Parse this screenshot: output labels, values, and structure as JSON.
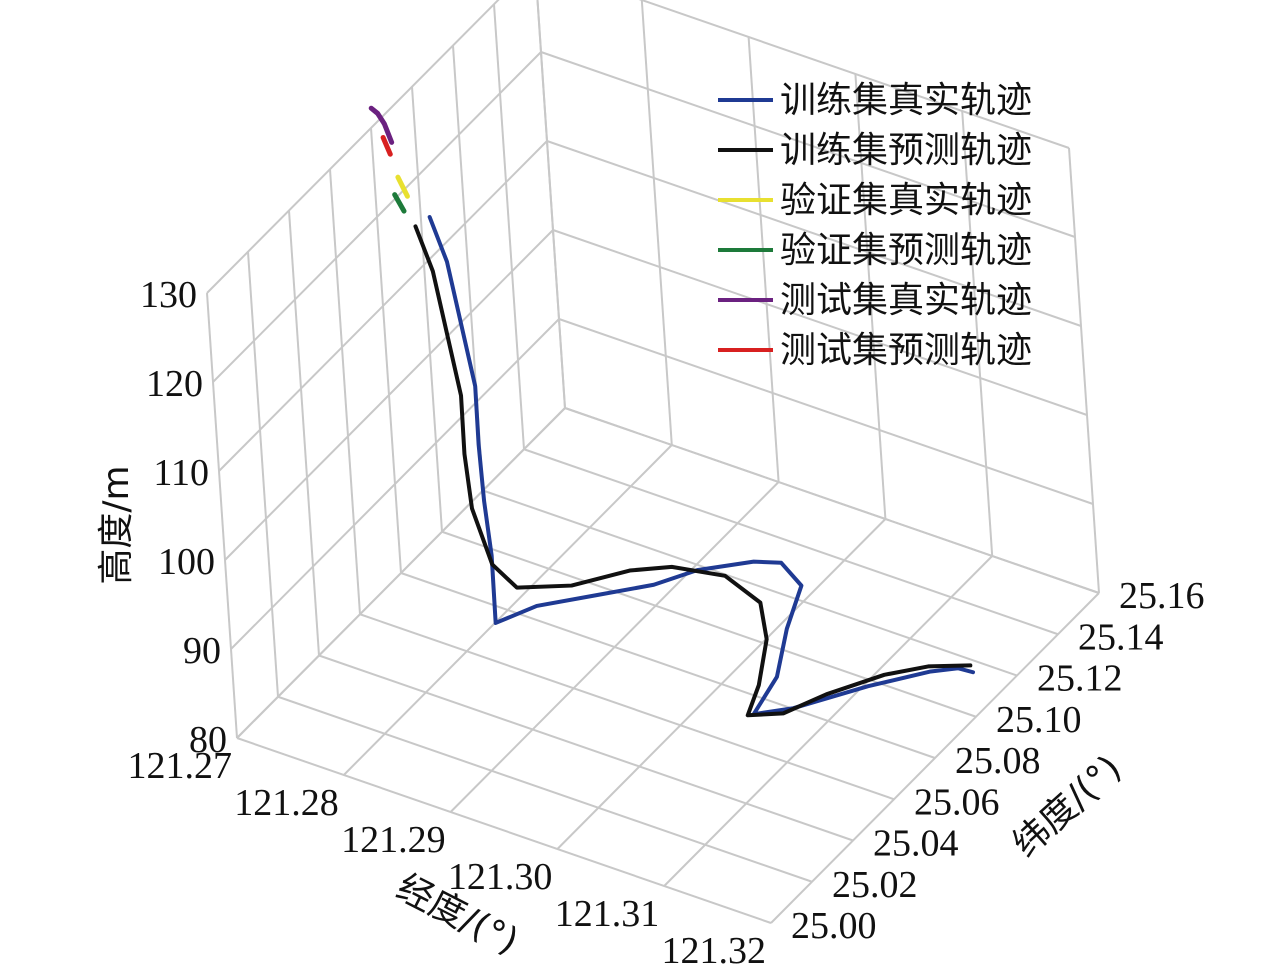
{
  "chart_data": {
    "type": "line",
    "xlabel": "经度/(°)",
    "ylabel": "纬度/(°)",
    "zlabel": "高度/m",
    "x_ticks": [
      "121.27",
      "121.28",
      "121.29",
      "121.30",
      "121.31",
      "121.32"
    ],
    "y_ticks": [
      "25.00",
      "25.02",
      "25.04",
      "25.06",
      "25.08",
      "25.10",
      "25.12",
      "25.14",
      "25.16"
    ],
    "z_ticks": [
      "80",
      "90",
      "100",
      "110",
      "120",
      "130"
    ],
    "grid": true,
    "legend_position": "top-right",
    "series": [
      {
        "name": "训练集真实轨迹",
        "color": "#1f3a93",
        "points": [
          [
            121.274,
            25.085,
            120.5
          ],
          [
            121.276,
            25.082,
            117
          ],
          [
            121.278,
            25.077,
            112
          ],
          [
            121.28,
            25.072,
            107
          ],
          [
            121.281,
            25.067,
            102
          ],
          [
            121.282,
            25.063,
            97
          ],
          [
            121.283,
            25.06,
            92
          ],
          [
            121.284,
            25.055,
            86
          ],
          [
            121.287,
            25.06,
            88
          ],
          [
            121.291,
            25.068,
            89
          ],
          [
            121.295,
            25.076,
            90
          ],
          [
            121.298,
            25.082,
            91.5
          ],
          [
            121.302,
            25.089,
            92.5
          ],
          [
            121.304,
            25.092,
            92.5
          ],
          [
            121.306,
            25.091,
            91
          ],
          [
            121.306,
            25.083,
            88
          ],
          [
            121.306,
            25.077,
            84
          ],
          [
            121.305,
            25.07,
            81
          ],
          [
            121.308,
            25.074,
            82
          ],
          [
            121.313,
            25.085,
            84
          ],
          [
            121.317,
            25.095,
            85
          ],
          [
            121.319,
            25.098,
            85.5
          ],
          [
            121.32,
            25.1,
            85
          ]
        ]
      },
      {
        "name": "训练集预测轨迹",
        "color": "#111111",
        "points": [
          [
            121.273,
            25.083,
            119.5
          ],
          [
            121.275,
            25.08,
            116
          ],
          [
            121.277,
            25.075,
            111
          ],
          [
            121.279,
            25.07,
            106
          ],
          [
            121.28,
            25.065,
            101
          ],
          [
            121.281,
            25.062,
            96
          ],
          [
            121.283,
            25.06,
            91
          ],
          [
            121.285,
            25.061,
            89
          ],
          [
            121.289,
            25.067,
            89.5
          ],
          [
            121.293,
            25.075,
            91
          ],
          [
            121.296,
            25.08,
            91.5
          ],
          [
            121.3,
            25.085,
            91
          ],
          [
            121.303,
            25.086,
            89
          ],
          [
            121.304,
            25.083,
            86
          ],
          [
            121.304,
            25.078,
            82
          ],
          [
            121.304,
            25.072,
            80
          ],
          [
            121.307,
            25.074,
            81
          ],
          [
            121.31,
            25.08,
            83
          ],
          [
            121.314,
            25.088,
            85
          ],
          [
            121.317,
            25.094,
            85.8
          ],
          [
            121.32,
            25.099,
            86
          ]
        ]
      },
      {
        "name": "验证集真实轨迹",
        "color": "#e8e030",
        "points": [
          [
            121.271,
            25.086,
            123.5
          ],
          [
            121.272,
            25.085,
            122
          ]
        ]
      },
      {
        "name": "验证集预测轨迹",
        "color": "#1d7a3a",
        "points": [
          [
            121.271,
            25.084,
            122
          ],
          [
            121.272,
            25.083,
            120.8
          ]
        ]
      },
      {
        "name": "测试集真实轨迹",
        "color": "#6b2180",
        "points": [
          [
            121.267,
            25.095,
            127.5
          ],
          [
            121.268,
            25.093,
            127.8
          ],
          [
            121.269,
            25.091,
            127.5
          ],
          [
            121.27,
            25.089,
            126.3
          ]
        ]
      },
      {
        "name": "测试集预测轨迹",
        "color": "#d82020",
        "points": [
          [
            121.269,
            25.09,
            126.2
          ],
          [
            121.27,
            25.088,
            125.2
          ]
        ]
      }
    ]
  }
}
